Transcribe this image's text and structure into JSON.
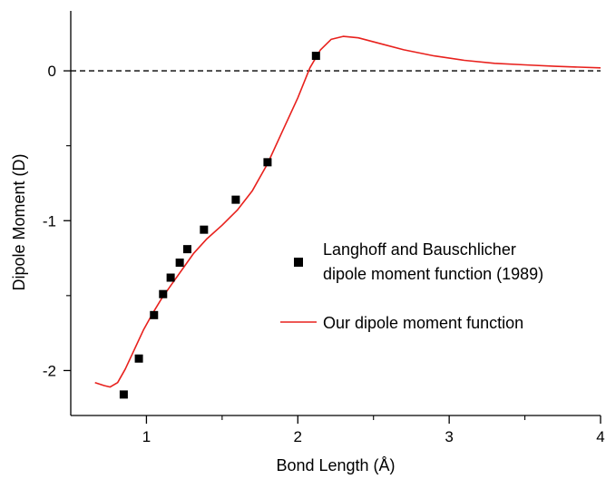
{
  "chart_data": {
    "type": "scatter",
    "title": "",
    "xlabel": "Bond Length (Å)",
    "ylabel": "Dipole Moment (D)",
    "xlim": [
      0.5,
      4.0
    ],
    "ylim": [
      -2.3,
      0.4
    ],
    "x_ticks": [
      {
        "value": 1,
        "label": "1"
      },
      {
        "value": 2,
        "label": "2"
      },
      {
        "value": 3,
        "label": "3"
      },
      {
        "value": 4,
        "label": "4"
      }
    ],
    "y_ticks": [
      {
        "value": 0,
        "label": "0"
      },
      {
        "value": -1,
        "label": "-1"
      },
      {
        "value": -2,
        "label": "-2"
      }
    ],
    "reference_line": {
      "y": 0,
      "style": "dashed",
      "color": "#000000"
    },
    "legend": {
      "placement": "right",
      "entries": [
        {
          "label_lines": [
            "Langhoff and Bauschlicher",
            "dipole moment function (1989)"
          ],
          "marker": "square"
        },
        {
          "label_lines": [
            "Our dipole moment function"
          ],
          "marker": "line"
        }
      ]
    },
    "series": [
      {
        "name": "Langhoff and Bauschlicher dipole moment function (1989)",
        "kind": "scatter",
        "marker": "square",
        "color": "#000000",
        "points": [
          {
            "x": 0.85,
            "y": -2.16
          },
          {
            "x": 0.95,
            "y": -1.92
          },
          {
            "x": 1.05,
            "y": -1.63
          },
          {
            "x": 1.11,
            "y": -1.49
          },
          {
            "x": 1.16,
            "y": -1.38
          },
          {
            "x": 1.22,
            "y": -1.28
          },
          {
            "x": 1.27,
            "y": -1.19
          },
          {
            "x": 1.38,
            "y": -1.06
          },
          {
            "x": 1.59,
            "y": -0.86
          },
          {
            "x": 1.8,
            "y": -0.61
          },
          {
            "x": 2.12,
            "y": 0.1
          }
        ]
      },
      {
        "name": "Our dipole moment function",
        "kind": "line",
        "color": "#e8211d",
        "points": [
          {
            "x": 0.66,
            "y": -2.08
          },
          {
            "x": 0.72,
            "y": -2.1
          },
          {
            "x": 0.76,
            "y": -2.11
          },
          {
            "x": 0.81,
            "y": -2.08
          },
          {
            "x": 0.86,
            "y": -1.99
          },
          {
            "x": 0.92,
            "y": -1.86
          },
          {
            "x": 0.98,
            "y": -1.73
          },
          {
            "x": 1.04,
            "y": -1.62
          },
          {
            "x": 1.1,
            "y": -1.52
          },
          {
            "x": 1.17,
            "y": -1.42
          },
          {
            "x": 1.24,
            "y": -1.32
          },
          {
            "x": 1.31,
            "y": -1.22
          },
          {
            "x": 1.4,
            "y": -1.12
          },
          {
            "x": 1.5,
            "y": -1.03
          },
          {
            "x": 1.6,
            "y": -0.93
          },
          {
            "x": 1.7,
            "y": -0.8
          },
          {
            "x": 1.8,
            "y": -0.62
          },
          {
            "x": 1.9,
            "y": -0.4
          },
          {
            "x": 2.0,
            "y": -0.18
          },
          {
            "x": 2.08,
            "y": 0.02
          },
          {
            "x": 2.15,
            "y": 0.14
          },
          {
            "x": 2.22,
            "y": 0.21
          },
          {
            "x": 2.3,
            "y": 0.23
          },
          {
            "x": 2.4,
            "y": 0.22
          },
          {
            "x": 2.55,
            "y": 0.18
          },
          {
            "x": 2.7,
            "y": 0.14
          },
          {
            "x": 2.9,
            "y": 0.1
          },
          {
            "x": 3.1,
            "y": 0.07
          },
          {
            "x": 3.3,
            "y": 0.05
          },
          {
            "x": 3.5,
            "y": 0.04
          },
          {
            "x": 3.7,
            "y": 0.03
          },
          {
            "x": 4.0,
            "y": 0.02
          }
        ]
      }
    ]
  }
}
